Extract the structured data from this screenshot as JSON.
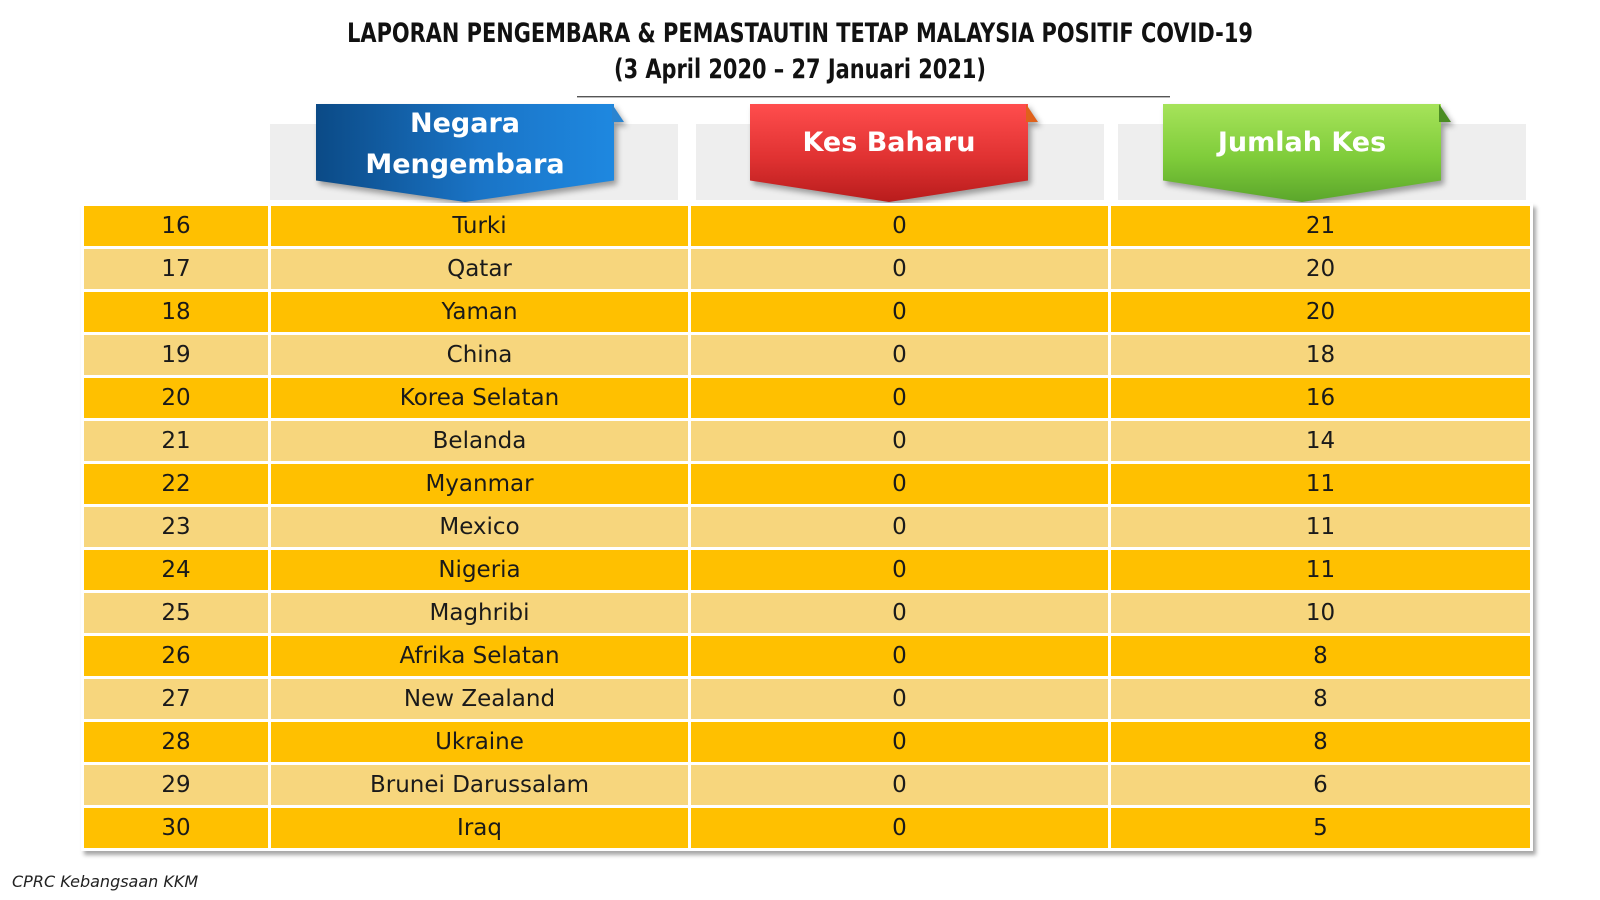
{
  "title": {
    "line1": "LAPORAN PENGEMBARA & PEMASTAUTIN TETAP MALAYSIA POSITIF COVID-19",
    "line2": "(3 April 2020 –  27 Januari 2021)"
  },
  "headers": {
    "country": "Negara Mengembara",
    "new_cases": "Kes Baharu",
    "total_cases": "Jumlah Kes"
  },
  "colors": {
    "row_dark": "#ffc000",
    "row_light": "#f7d67d",
    "header_country": "#1a74c6",
    "header_new": "#e03232",
    "header_total": "#7fcc3a"
  },
  "rows": [
    {
      "no": "16",
      "country": "Turki",
      "new": "0",
      "total": "21"
    },
    {
      "no": "17",
      "country": "Qatar",
      "new": "0",
      "total": "20"
    },
    {
      "no": "18",
      "country": "Yaman",
      "new": "0",
      "total": "20"
    },
    {
      "no": "19",
      "country": "China",
      "new": "0",
      "total": "18"
    },
    {
      "no": "20",
      "country": "Korea Selatan",
      "new": "0",
      "total": "16"
    },
    {
      "no": "21",
      "country": "Belanda",
      "new": "0",
      "total": "14"
    },
    {
      "no": "22",
      "country": "Myanmar",
      "new": "0",
      "total": "11"
    },
    {
      "no": "23",
      "country": "Mexico",
      "new": "0",
      "total": "11"
    },
    {
      "no": "24",
      "country": "Nigeria",
      "new": "0",
      "total": "11"
    },
    {
      "no": "25",
      "country": "Maghribi",
      "new": "0",
      "total": "10"
    },
    {
      "no": "26",
      "country": "Afrika Selatan",
      "new": "0",
      "total": "8"
    },
    {
      "no": "27",
      "country": "New Zealand",
      "new": "0",
      "total": "8"
    },
    {
      "no": "28",
      "country": "Ukraine",
      "new": "0",
      "total": "8"
    },
    {
      "no": "29",
      "country": "Brunei Darussalam",
      "new": "0",
      "total": "6"
    },
    {
      "no": "30",
      "country": "Iraq",
      "new": "0",
      "total": "5"
    }
  ],
  "footer": "CPRC Kebangsaan KKM"
}
